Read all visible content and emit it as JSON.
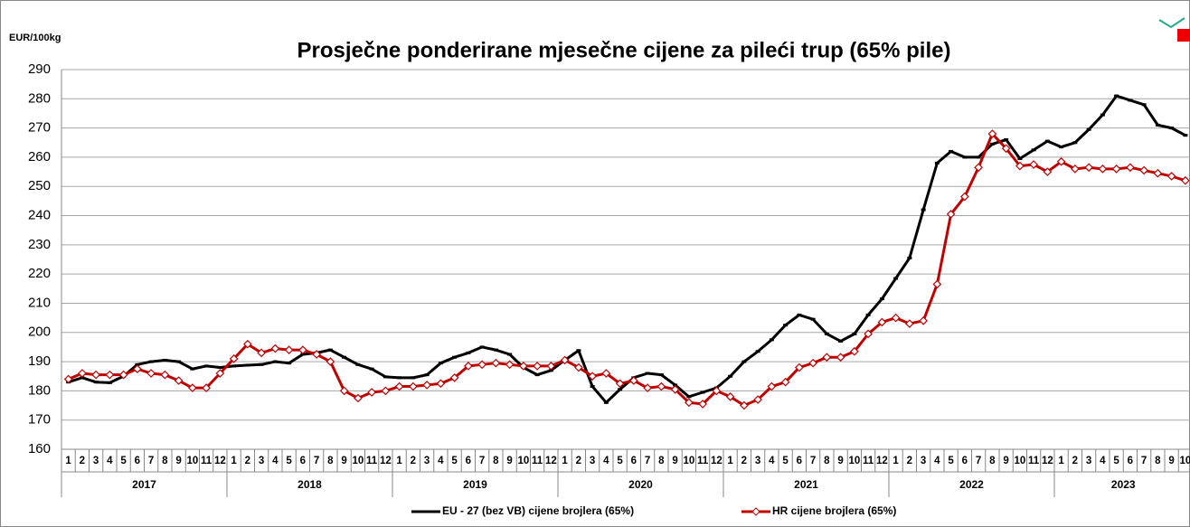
{
  "chart_data": {
    "type": "line",
    "title": "Prosječne ponderirane mjesečne cijene za pileći trup (65% pile)",
    "y_label": "EUR/100kg",
    "categories": [
      "1",
      "2",
      "3",
      "4",
      "5",
      "6",
      "7",
      "8",
      "9",
      "10",
      "11",
      "12",
      "1",
      "2",
      "3",
      "4",
      "5",
      "6",
      "7",
      "8",
      "9",
      "10",
      "11",
      "12",
      "1",
      "2",
      "3",
      "4",
      "5",
      "6",
      "7",
      "8",
      "9",
      "10",
      "11",
      "12",
      "1",
      "2",
      "3",
      "4",
      "5",
      "6",
      "7",
      "8",
      "9",
      "10",
      "11",
      "12",
      "1",
      "2",
      "3",
      "4",
      "5",
      "6",
      "7",
      "8",
      "9",
      "10",
      "11",
      "12",
      "1",
      "2",
      "3",
      "4",
      "5",
      "6",
      "7",
      "8",
      "9",
      "10",
      "11",
      "12",
      "1",
      "2",
      "3",
      "4",
      "5",
      "6",
      "7",
      "8",
      "9",
      "10"
    ],
    "x_groups": [
      "2017",
      "2018",
      "2019",
      "2020",
      "2021",
      "2022",
      "2023"
    ],
    "ylim": [
      160,
      290
    ],
    "yticks": [
      160,
      170,
      180,
      190,
      200,
      210,
      220,
      230,
      240,
      250,
      260,
      270,
      280,
      290
    ],
    "grid": true,
    "legend": "bottom",
    "series": [
      {
        "name": "EU - 27 (bez VB) cijene brojlera (65%)",
        "color": "#000000",
        "marker": "dash",
        "values": [
          183,
          184.5,
          183,
          182.8,
          185,
          189,
          190,
          190.5,
          190,
          187.5,
          188.5,
          188,
          188.5,
          188.8,
          189,
          190,
          189.5,
          192.5,
          193,
          194,
          191.5,
          189,
          187.5,
          184.8,
          184.5,
          184.5,
          185.5,
          189.5,
          191.5,
          193,
          195,
          194,
          192.5,
          188,
          185.5,
          187,
          190.5,
          193.8,
          181.5,
          176,
          180.5,
          184.5,
          186,
          185.5,
          182,
          178,
          179.5,
          181,
          185,
          190,
          193.5,
          197.5,
          202.5,
          206,
          204.5,
          199.5,
          197,
          199.5,
          206,
          211.5,
          218.5,
          225.5,
          242,
          258,
          262,
          260,
          260,
          264.5,
          266,
          259.5,
          262.5,
          265.5,
          263.5,
          265,
          269.5,
          274.5,
          281,
          279.5,
          278,
          271,
          270,
          267.5
        ]
      },
      {
        "name": "HR cijene brojlera (65%)",
        "color": "#c00000",
        "marker": "diamond",
        "values": [
          184,
          186,
          185.5,
          185.5,
          185.5,
          187.5,
          186,
          185.5,
          183.5,
          181,
          181,
          186,
          191,
          196,
          193,
          194.5,
          194,
          194,
          192.5,
          190,
          180,
          177.5,
          179.5,
          180,
          181.5,
          181.5,
          182,
          182.5,
          184.5,
          188.5,
          189,
          189.5,
          189,
          188.5,
          188.5,
          188.5,
          190.5,
          188,
          185,
          186,
          182.5,
          183.5,
          181,
          181.5,
          180.5,
          176,
          175.5,
          180,
          178,
          175,
          177,
          181.5,
          183,
          188,
          189.5,
          191.5,
          191.5,
          193.5,
          199.5,
          203.5,
          205,
          203,
          204,
          216.5,
          240.5,
          246.5,
          256.5,
          268,
          263,
          257,
          257.5,
          255,
          258.5,
          256,
          256.5,
          256,
          256,
          256.5,
          255.5,
          254.5,
          253.5,
          252
        ]
      }
    ]
  }
}
